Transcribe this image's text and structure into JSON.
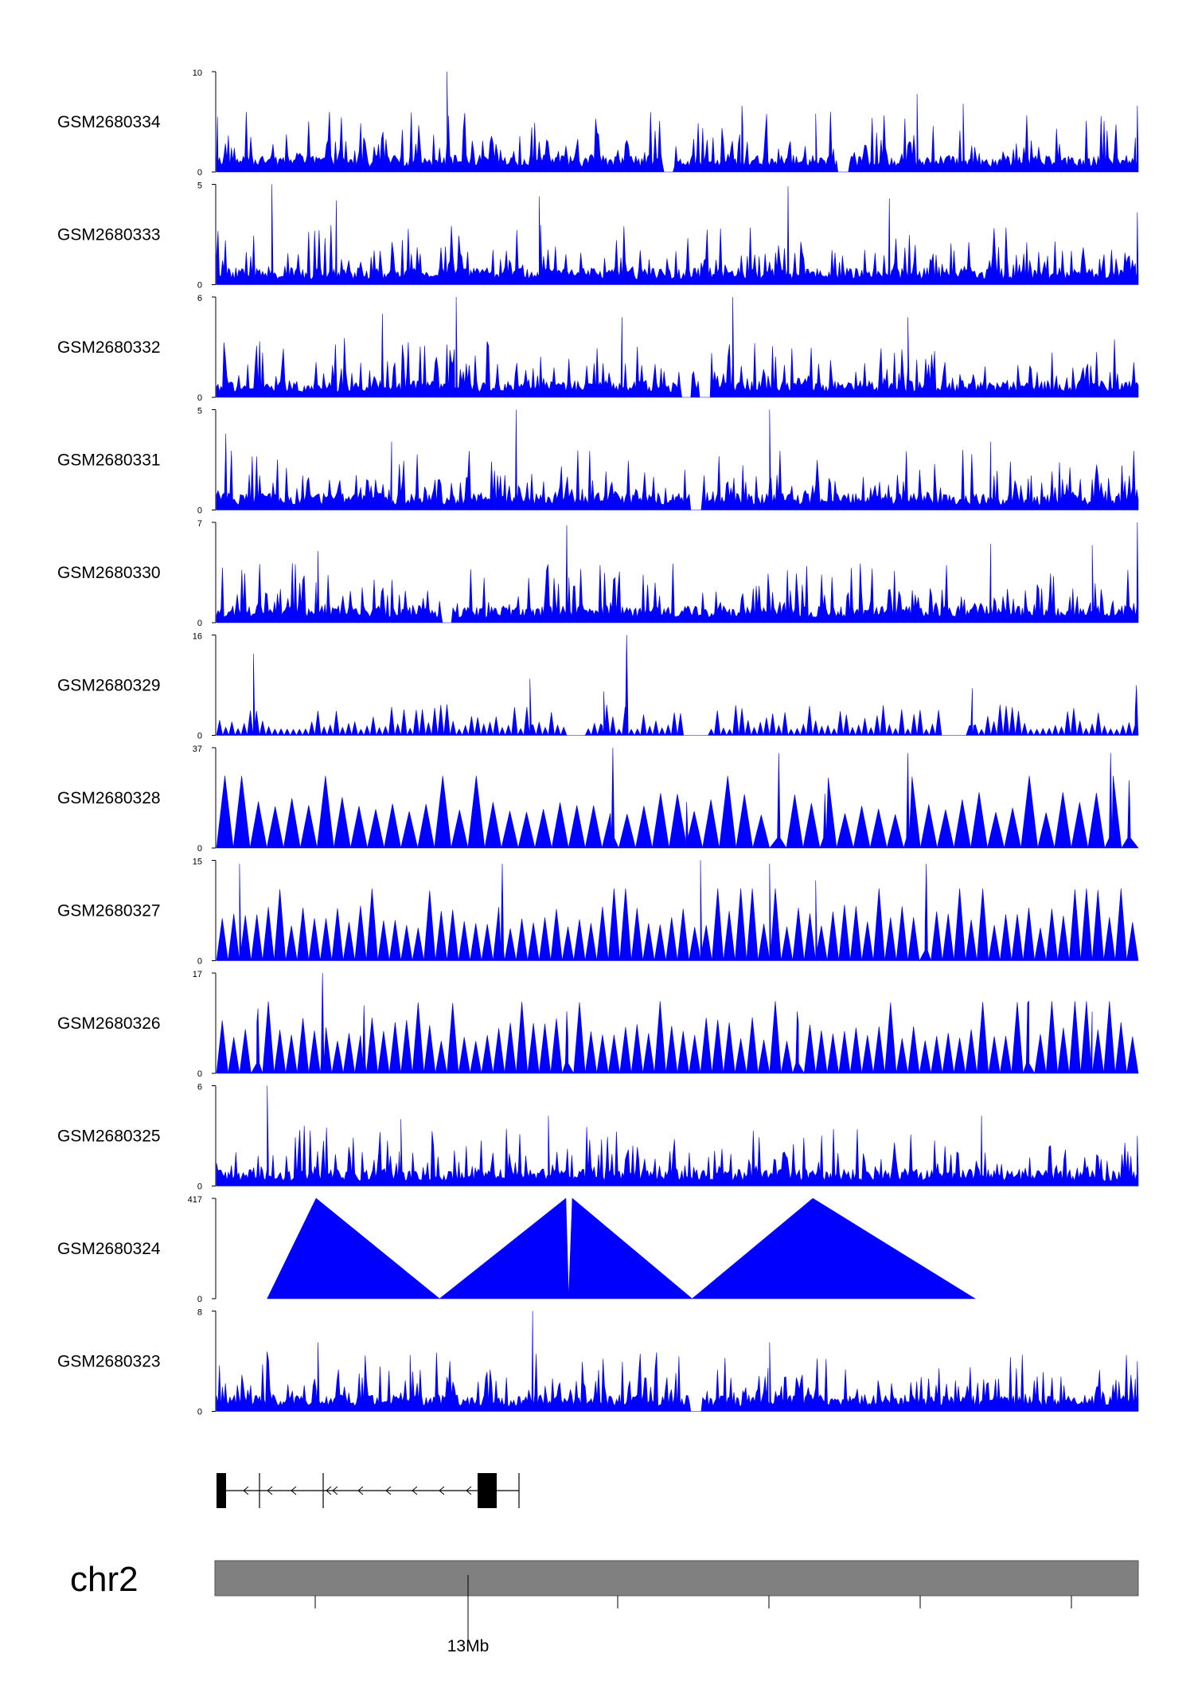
{
  "chart_data": {
    "type": "area",
    "color_signal": "#0000ff",
    "color_ideogram": "#808080",
    "color_gene": "#000000",
    "chromosome": "chr2",
    "genome_axis": {
      "labelled_tick": "13Mb",
      "unlabelled_tick_count": 5
    },
    "tracks": [
      {
        "name": "GSM2680334",
        "ymin": "0",
        "ymax": "10",
        "max_value": 10,
        "peaks": [
          {
            "x": 0.25,
            "v": 10
          },
          {
            "x": 0.76,
            "v": 7.8
          },
          {
            "x": 0.57,
            "v": 6.6
          },
          {
            "x": 0.81,
            "v": 6.8
          },
          {
            "x": 0.999,
            "v": 6.6
          },
          {
            "x": 0.001,
            "v": 5.5
          },
          {
            "x": 0.65,
            "v": 5.8
          }
        ],
        "gaps": [
          0.49,
          0.68
        ]
      },
      {
        "name": "GSM2680333",
        "ymin": "0",
        "ymax": "5",
        "max_value": 5,
        "peaks": [
          {
            "x": 0.06,
            "v": 5
          },
          {
            "x": 0.62,
            "v": 4.9
          },
          {
            "x": 0.73,
            "v": 4.3
          },
          {
            "x": 0.35,
            "v": 4.4
          },
          {
            "x": 0.13,
            "v": 4.2
          },
          {
            "x": 0.999,
            "v": 3.6
          }
        ],
        "gaps": []
      },
      {
        "name": "GSM2680332",
        "ymin": "0",
        "ymax": "6",
        "max_value": 6,
        "peaks": [
          {
            "x": 0.26,
            "v": 6
          },
          {
            "x": 0.56,
            "v": 6
          },
          {
            "x": 0.18,
            "v": 5
          },
          {
            "x": 0.75,
            "v": 4.8
          },
          {
            "x": 0.44,
            "v": 4.8
          }
        ],
        "gaps": [
          0.51,
          0.53
        ]
      },
      {
        "name": "GSM2680331",
        "ymin": "0",
        "ymax": "5",
        "max_value": 5,
        "peaks": [
          {
            "x": 0.325,
            "v": 5
          },
          {
            "x": 0.6,
            "v": 5
          },
          {
            "x": 0.01,
            "v": 3.8
          },
          {
            "x": 0.19,
            "v": 3.4
          },
          {
            "x": 0.84,
            "v": 3.4
          }
        ],
        "gaps": [
          0.52
        ]
      },
      {
        "name": "GSM2680330",
        "ymin": "0",
        "ymax": "7",
        "max_value": 7,
        "peaks": [
          {
            "x": 0.38,
            "v": 6.8
          },
          {
            "x": 0.999,
            "v": 7
          },
          {
            "x": 0.11,
            "v": 5
          },
          {
            "x": 0.84,
            "v": 5.5
          },
          {
            "x": 0.95,
            "v": 5.4
          }
        ],
        "gaps": [
          0.25
        ]
      },
      {
        "name": "GSM2680329",
        "ymin": "0",
        "ymax": "16",
        "max_value": 16,
        "peaks": [
          {
            "x": 0.445,
            "v": 16
          },
          {
            "x": 0.04,
            "v": 13
          },
          {
            "x": 0.998,
            "v": 8
          },
          {
            "x": 0.34,
            "v": 9
          },
          {
            "x": 0.82,
            "v": 7.5
          },
          {
            "x": 0.42,
            "v": 7
          }
        ],
        "gaps": [
          0.39,
          0.52,
          0.8
        ]
      },
      {
        "name": "GSM2680328",
        "ymin": "0",
        "ymax": "37",
        "max_value": 37,
        "peaks": [
          {
            "x": 0.43,
            "v": 37
          },
          {
            "x": 0.61,
            "v": 35
          },
          {
            "x": 0.75,
            "v": 35
          },
          {
            "x": 0.97,
            "v": 35
          },
          {
            "x": 0.99,
            "v": 25
          },
          {
            "x": 0.51,
            "v": 17
          },
          {
            "x": 0.66,
            "v": 20
          }
        ],
        "gaps": []
      },
      {
        "name": "GSM2680327",
        "ymin": "0",
        "ymax": "15",
        "max_value": 15,
        "peaks": [
          {
            "x": 0.525,
            "v": 15
          },
          {
            "x": 0.025,
            "v": 14.5
          },
          {
            "x": 0.31,
            "v": 14.5
          },
          {
            "x": 0.6,
            "v": 14.5
          },
          {
            "x": 0.77,
            "v": 14.5
          },
          {
            "x": 0.65,
            "v": 12
          }
        ],
        "gaps": []
      },
      {
        "name": "GSM2680326",
        "ymin": "0",
        "ymax": "17",
        "max_value": 17,
        "peaks": [
          {
            "x": 0.115,
            "v": 17
          },
          {
            "x": 0.16,
            "v": 11.5
          },
          {
            "x": 0.88,
            "v": 12
          },
          {
            "x": 0.045,
            "v": 11
          },
          {
            "x": 0.63,
            "v": 10.5
          },
          {
            "x": 0.95,
            "v": 10.5
          },
          {
            "x": 0.38,
            "v": 10.5
          }
        ],
        "gaps": []
      },
      {
        "name": "GSM2680325",
        "ymin": "0",
        "ymax": "6",
        "max_value": 6,
        "peaks": [
          {
            "x": 0.055,
            "v": 6
          },
          {
            "x": 0.36,
            "v": 4.2
          },
          {
            "x": 0.83,
            "v": 4.2
          },
          {
            "x": 0.2,
            "v": 4
          },
          {
            "x": 0.999,
            "v": 3
          }
        ],
        "gaps": []
      },
      {
        "name": "GSM2680324",
        "ymin": "0",
        "ymax": "417",
        "max_value": 417,
        "segments": [
          [
            0.055,
            0
          ],
          [
            0.108,
            417
          ],
          [
            0.242,
            0
          ],
          [
            0.379,
            417
          ],
          [
            0.382,
            0
          ],
          [
            0.386,
            417
          ],
          [
            0.516,
            0
          ],
          [
            0.647,
            417
          ],
          [
            0.823,
            0
          ]
        ]
      },
      {
        "name": "GSM2680323",
        "ymin": "0",
        "ymax": "8",
        "max_value": 8,
        "peaks": [
          {
            "x": 0.343,
            "v": 8
          },
          {
            "x": 0.11,
            "v": 5.5
          },
          {
            "x": 0.6,
            "v": 5.5
          },
          {
            "x": 0.999,
            "v": 4
          },
          {
            "x": 0.21,
            "v": 4.5
          }
        ],
        "gaps": [
          0.52
        ]
      }
    ]
  }
}
